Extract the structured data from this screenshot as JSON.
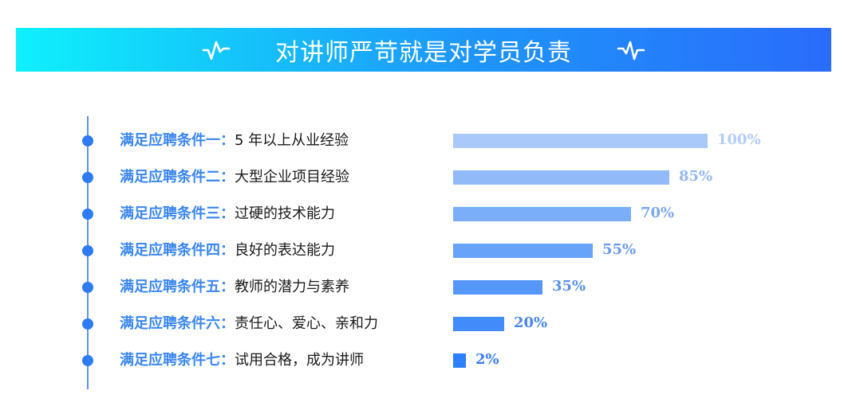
{
  "header": {
    "title": "对讲师严苛就是对学员负责",
    "left_icon": "pulse-icon",
    "right_icon": "pulse-icon",
    "gradient_start": "#0ff0fc",
    "gradient_end": "#2a6cfb"
  },
  "items": [
    {
      "key": "满足应聘条件一：",
      "desc": "5 年以上从业经验",
      "value": 100,
      "label": "100%",
      "bar_color": "#a8c9fa",
      "text_color": "#b3cdf6"
    },
    {
      "key": "满足应聘条件二：",
      "desc": "大型企业项目经验",
      "value": 85,
      "label": "85%",
      "bar_color": "#90bbf8",
      "text_color": "#93b8f3"
    },
    {
      "key": "满足应聘条件三：",
      "desc": "过硬的技术能力",
      "value": 70,
      "label": "70%",
      "bar_color": "#7aaef8",
      "text_color": "#7ca8f0"
    },
    {
      "key": "满足应聘条件四：",
      "desc": "良好的表达能力",
      "value": 55,
      "label": "55%",
      "bar_color": "#67a3f8",
      "text_color": "#6899ec"
    },
    {
      "key": "满足应聘条件五：",
      "desc": "教师的潜力与素养",
      "value": 35,
      "label": "35%",
      "bar_color": "#5597f9",
      "text_color": "#5a90ec"
    },
    {
      "key": "满足应聘条件六：",
      "desc": "责任心、爱心、亲和力",
      "value": 20,
      "label": "20%",
      "bar_color": "#418bfa",
      "text_color": "#4a86ee"
    },
    {
      "key": "满足应聘条件七：",
      "desc": "试用合格，成为讲师",
      "value": 2,
      "label": "2%",
      "bar_color": "#2d7ffb",
      "text_color": "#3b7cee"
    }
  ],
  "chart_data": {
    "type": "bar",
    "orientation": "horizontal",
    "title": "对讲师严苛就是对学员负责",
    "categories": [
      "满足应聘条件一：5 年以上从业经验",
      "满足应聘条件二：大型企业项目经验",
      "满足应聘条件三：过硬的技术能力",
      "满足应聘条件四：良好的表达能力",
      "满足应聘条件五：教师的潜力与素养",
      "满足应聘条件六：责任心、爱心、亲和力",
      "满足应聘条件七：试用合格，成为讲师"
    ],
    "values": [
      100,
      85,
      70,
      55,
      35,
      20,
      2
    ],
    "value_labels": [
      "100%",
      "85%",
      "70%",
      "55%",
      "35%",
      "20%",
      "2%"
    ],
    "xlabel": "",
    "ylabel": "",
    "xlim": [
      0,
      100
    ],
    "grid": false,
    "legend": null
  }
}
